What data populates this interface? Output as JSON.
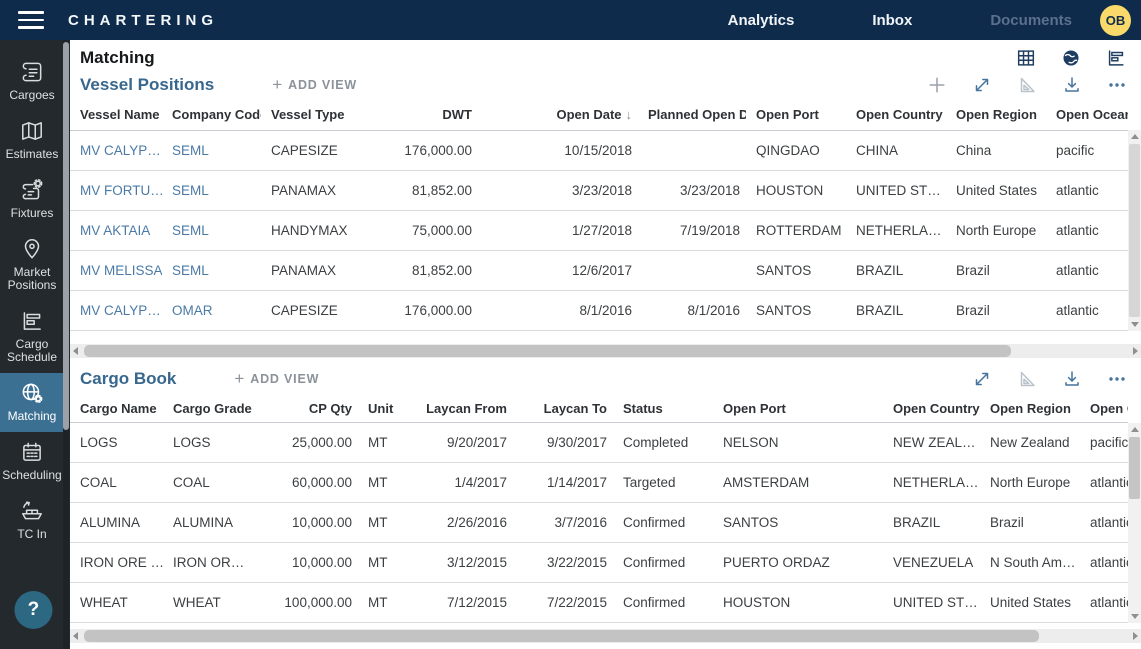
{
  "topbar": {
    "brand": "CHARTERING",
    "nav": [
      {
        "label": "Analytics"
      },
      {
        "label": "Inbox"
      },
      {
        "label": "Documents"
      }
    ],
    "avatar": "OB"
  },
  "sidebar": {
    "items": [
      {
        "label": "Cargoes",
        "icon": "scroll-icon"
      },
      {
        "label": "Estimates",
        "icon": "map-icon"
      },
      {
        "label": "Fixtures",
        "icon": "scroll-gear-icon"
      },
      {
        "label": "Market Positions",
        "icon": "map-pin-icon"
      },
      {
        "label": "Cargo Schedule",
        "icon": "gantt-icon"
      },
      {
        "label": "Matching",
        "icon": "globe-gear-icon"
      },
      {
        "label": "Scheduling",
        "icon": "calendar-icon"
      },
      {
        "label": "TC In",
        "icon": "ship-icon"
      }
    ],
    "active_item": "Matching",
    "help_label": "?"
  },
  "page": {
    "title": "Matching",
    "view_icons": [
      "table-view-icon",
      "globe-view-icon",
      "gantt-view-icon"
    ]
  },
  "vessel_positions": {
    "title": "Vessel Positions",
    "add_view": {
      "plus": "+",
      "label": "ADD VIEW"
    },
    "toolbar_icons": [
      "add-icon",
      "expand-icon",
      "set-square-icon",
      "download-icon",
      "more-options-icon"
    ],
    "sort": {
      "column_index": 4,
      "column": "Open Date",
      "direction": "desc",
      "arrow": "↓"
    },
    "columns": [
      "Vessel Name",
      "Company Code",
      "Vessel Type",
      "DWT",
      "Open Date",
      "Planned Open Date",
      "Open Port",
      "Open Country",
      "Open Region",
      "Open Ocean"
    ],
    "rows": [
      [
        "MV CALYP…",
        "SEML",
        "CAPESIZE",
        "176,000.00",
        "10/15/2018",
        "",
        "QINGDAO",
        "CHINA",
        "China",
        "pacific"
      ],
      [
        "MV FORTU…",
        "SEML",
        "PANAMAX",
        "81,852.00",
        "3/23/2018",
        "3/23/2018",
        "HOUSTON",
        "UNITED ST…",
        "United States",
        "atlantic"
      ],
      [
        "MV AKTAIA",
        "SEML",
        "HANDYMAX",
        "75,000.00",
        "1/27/2018",
        "7/19/2018",
        "ROTTERDAM",
        "NETHERLA…",
        "North Europe",
        "atlantic"
      ],
      [
        "MV MELISSA",
        "SEML",
        "PANAMAX",
        "81,852.00",
        "12/6/2017",
        "",
        "SANTOS",
        "BRAZIL",
        "Brazil",
        "atlantic"
      ],
      [
        "MV CALYP…",
        "OMAR",
        "CAPESIZE",
        "176,000.00",
        "8/1/2016",
        "8/1/2016",
        "SANTOS",
        "BRAZIL",
        "Brazil",
        "atlantic"
      ]
    ]
  },
  "cargo_book": {
    "title": "Cargo Book",
    "add_view": {
      "plus": "+",
      "label": "ADD VIEW"
    },
    "toolbar_icons": [
      "expand-icon",
      "set-square-icon",
      "download-icon",
      "more-options-icon"
    ],
    "columns": [
      "Cargo Name",
      "Cargo Grade",
      "CP Qty",
      "Unit",
      "Laycan From",
      "Laycan To",
      "Status",
      "Open Port",
      "Open Country",
      "Open Region",
      "Open Ocean"
    ],
    "rows": [
      [
        "LOGS",
        "LOGS",
        "25,000.00",
        "MT",
        "9/20/2017",
        "9/30/2017",
        "Completed",
        "NELSON",
        "NEW ZEAL…",
        "New Zealand",
        "pacific"
      ],
      [
        "COAL",
        "COAL",
        "60,000.00",
        "MT",
        "1/4/2017",
        "1/14/2017",
        "Targeted",
        "AMSTERDAM",
        "NETHERLA…",
        "North Europe",
        "atlantic"
      ],
      [
        "ALUMINA",
        "ALUMINA",
        "10,000.00",
        "MT",
        "2/26/2016",
        "3/7/2016",
        "Confirmed",
        "SANTOS",
        "BRAZIL",
        "Brazil",
        "atlantic"
      ],
      [
        "IRON ORE …",
        "IRON OR…",
        "10,000.00",
        "MT",
        "3/12/2015",
        "3/22/2015",
        "Confirmed",
        "PUERTO ORDAZ",
        "VENEZUELA",
        "N South Am…",
        "atlantic"
      ],
      [
        "WHEAT",
        "WHEAT",
        "100,000.00",
        "MT",
        "7/12/2015",
        "7/22/2015",
        "Confirmed",
        "HOUSTON",
        "UNITED ST…",
        "United States",
        "atlantic"
      ]
    ]
  },
  "colors": {
    "topbar_bg": "#0e2b4c",
    "sidebar_bg": "#24292d",
    "active_item_bg": "#3c7093",
    "section_title": "#38678e",
    "link_text": "#4a7aa5",
    "avatar_bg": "#f8d96a",
    "help_button_bg": "#2d6883"
  }
}
